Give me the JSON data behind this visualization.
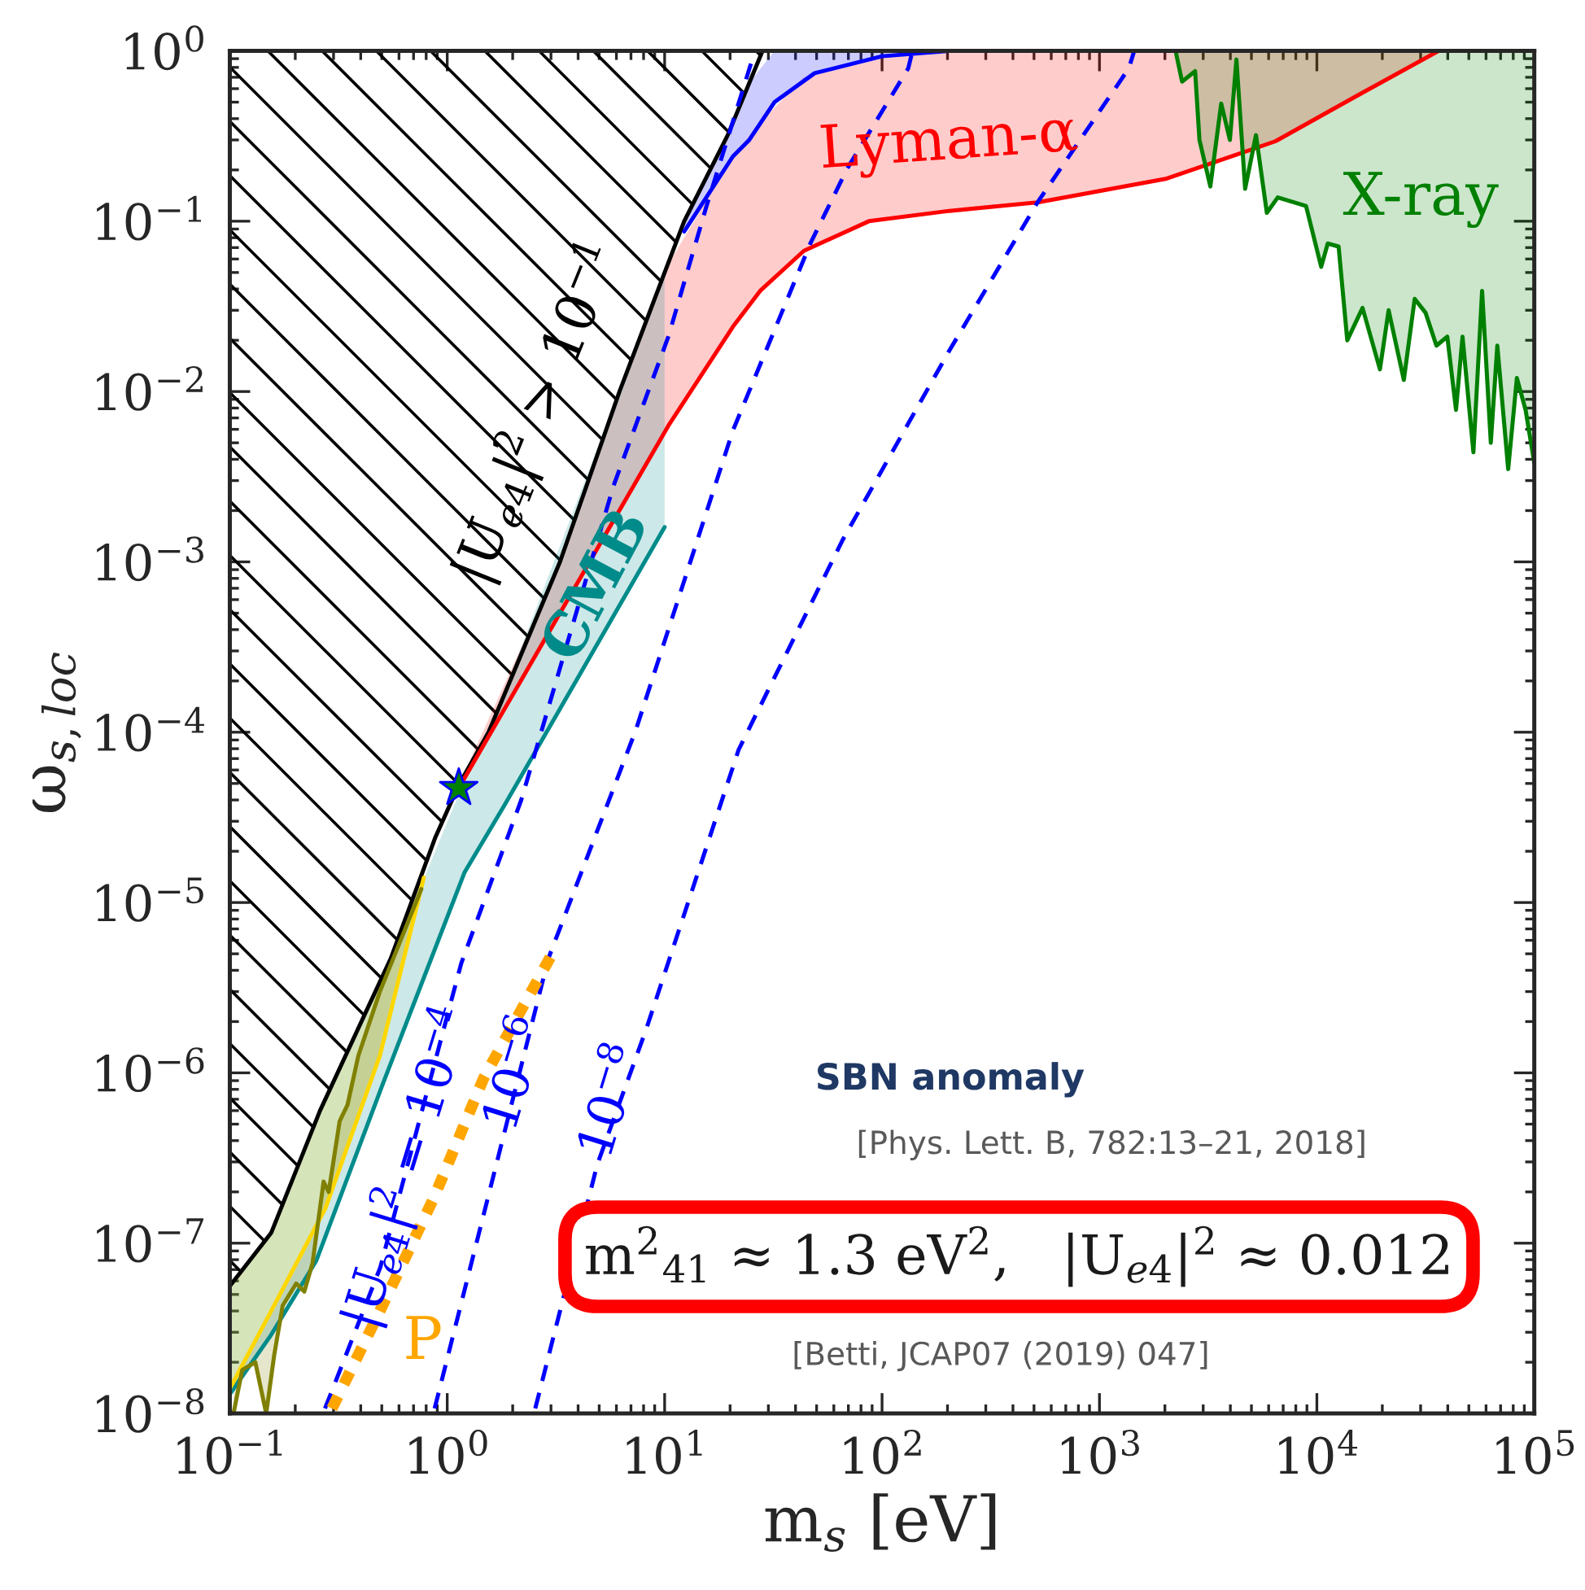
{
  "chart_data": {
    "type": "line",
    "log": "xy",
    "xlabel": "m$_{s}$ [eV]",
    "ylabel": "ω$_{s,loc}$",
    "xlim": [
      0.1,
      100000
    ],
    "ylim": [
      1e-08,
      1
    ],
    "xticks": [
      {
        "value": 0.1,
        "label": "10$^{−1}$"
      },
      {
        "value": 1,
        "label": "10$^{0}$"
      },
      {
        "value": 10,
        "label": "10$^{1}$"
      },
      {
        "value": 100,
        "label": "10$^{2}$"
      },
      {
        "value": 1000,
        "label": "10$^{3}$"
      },
      {
        "value": 10000,
        "label": "10$^{4}$"
      },
      {
        "value": 100000,
        "label": "10$^{5}$"
      }
    ],
    "yticks": [
      {
        "value": 1e-08,
        "label": "10$^{−8}$"
      },
      {
        "value": 1e-07,
        "label": "10$^{−7}$"
      },
      {
        "value": 1e-06,
        "label": "10$^{−6}$"
      },
      {
        "value": 1e-05,
        "label": "10$^{−5}$"
      },
      {
        "value": 0.0001,
        "label": "10$^{−4}$"
      },
      {
        "value": 0.001,
        "label": "10$^{−3}$"
      },
      {
        "value": 0.01,
        "label": "10$^{−2}$"
      },
      {
        "value": 0.1,
        "label": "10$^{−1}$"
      },
      {
        "value": 1,
        "label": "10$^{0}$"
      }
    ],
    "series": [
      {
        "color": "#000000",
        "x": [
          0.1,
          0.155,
          0.26,
          0.55,
          0.88,
          1.13,
          1.55,
          3.3,
          6.2,
          10,
          12.3,
          19.5,
          28.2
        ],
        "values": [
          5.6e-08,
          1.15e-07,
          6e-07,
          4.7e-06,
          2.4e-05,
          4.9e-05,
          0.0001,
          0.001,
          0.01,
          0.05,
          0.1,
          0.32,
          1
        ],
        "lower": [
          5.6e-08,
          1.15e-07,
          6e-07,
          4.7e-06,
          2.4e-05,
          4.9e-05,
          0.0001,
          0.001,
          0.01,
          0.05,
          0.1,
          0.32,
          1
        ],
        "upper": [
          1,
          1,
          1,
          1,
          1,
          1,
          1,
          1,
          1,
          1,
          1,
          1,
          1
        ]
      },
      {
        "color": "#0000ff",
        "x": [
          12.3,
          20.6,
          24.5,
          32,
          49,
          100,
          204
        ],
        "values": [
          0.087,
          0.24,
          0.3,
          0.5,
          0.74,
          0.93,
          1.0
        ],
        "lower": [
          0.087,
          0.24,
          0.3,
          0.5,
          0.74,
          0.93,
          1.0
        ],
        "upper": [
          0.1,
          0.38,
          0.65,
          1,
          1,
          1,
          1
        ]
      },
      {
        "color": "#ff0000",
        "x": [
          1.13,
          3.3,
          10.4,
          20.6,
          27.5,
          43.7,
          87,
          204,
          519,
          2040,
          6460,
          15100,
          36300
        ],
        "values": [
          4.7e-05,
          0.0005,
          0.0063,
          0.024,
          0.039,
          0.067,
          0.1,
          0.115,
          0.129,
          0.178,
          0.295,
          0.54,
          1.0
        ],
        "lower": [
          4.7e-05,
          0.0005,
          0.0063,
          0.024,
          0.039,
          0.067,
          0.1,
          0.115,
          0.129,
          0.178,
          0.295,
          0.54,
          1.0
        ],
        "upper": [
          4.9e-05,
          0.001,
          0.056,
          0.24,
          0.38,
          0.7,
          0.91,
          1,
          1,
          1,
          1,
          1,
          1
        ]
      },
      {
        "color": "#008b8b",
        "x": [
          0.1,
          0.155,
          0.25,
          0.5,
          1.2,
          1.85,
          10
        ],
        "values": [
          1.3e-08,
          2.9e-08,
          7.9e-08,
          8.3e-07,
          1.5e-05,
          3.8e-05,
          0.0016
        ],
        "lower": [
          1.3e-08,
          2.9e-08,
          7.9e-08,
          8.3e-07,
          1.5e-05,
          3.8e-05,
          0.0016
        ],
        "upper": [
          5.6e-08,
          1.15e-07,
          5.4e-07,
          3.5e-06,
          5.2e-05,
          0.00018,
          0.05
        ]
      },
      {
        "color": "#ffd700",
        "x": [
          0.1,
          0.155,
          0.275,
          0.49,
          0.78
        ],
        "values": [
          1.4e-08,
          4e-08,
          1.6e-07,
          1.26e-06,
          1.4e-05
        ],
        "lower": [
          1.4e-08,
          4e-08,
          1.6e-07,
          1.26e-06,
          1.4e-05
        ],
        "upper": [
          5.6e-08,
          1.15e-07,
          6.9e-07,
          3.4e-06,
          1.6e-05
        ]
      },
      {
        "color": "#808000",
        "x": [
          0.104,
          0.114,
          0.131,
          0.147,
          0.16,
          0.175,
          0.202,
          0.22,
          0.24,
          0.27,
          0.285,
          0.32,
          0.348,
          0.39,
          0.49,
          0.76
        ],
        "values": [
          1e-08,
          1.8e-08,
          2e-08,
          1e-08,
          2.2e-08,
          4.3e-08,
          5.8e-08,
          5.2e-08,
          7.6e-08,
          2.3e-07,
          2e-07,
          5.2e-07,
          6.5e-07,
          1.26e-06,
          3e-06,
          1.2e-05
        ],
        "lower": [
          1e-08,
          1.8e-08,
          2e-08,
          1e-08,
          2.2e-08,
          4.3e-08,
          5.8e-08,
          5.2e-08,
          7.6e-08,
          2.3e-07,
          2e-07,
          5.2e-07,
          6.5e-07,
          1.26e-06,
          3e-06,
          1.2e-05
        ],
        "upper": [
          1.55e-08,
          1.9e-08,
          2.7e-08,
          3.5e-08,
          4.4e-08,
          5.4e-08,
          7.6e-08,
          9.3e-08,
          1.15e-07,
          1.55e-07,
          1.8e-07,
          2.75e-07,
          3.8e-07,
          5.6e-07,
          1.3e-06,
          1.23e-05
        ]
      },
      {
        "color": "#008000",
        "x": [
          2239,
          2399,
          2754,
          2884,
          3236,
          3631,
          3981,
          4266,
          4677,
          5248,
          5888,
          6607,
          8913,
          10470,
          11220,
          12590,
          13800,
          16220,
          19500,
          21380,
          25120,
          28180,
          31620,
          35480,
          39810,
          43650,
          46770,
          52480,
          57540,
          63100,
          67610,
          75860,
          83180,
          91200,
          100000
        ],
        "values": [
          1,
          0.66,
          0.76,
          0.3,
          0.16,
          0.49,
          0.3,
          0.89,
          0.155,
          0.32,
          0.112,
          0.138,
          0.123,
          0.054,
          0.074,
          0.071,
          0.02,
          0.031,
          0.0135,
          0.03,
          0.0117,
          0.035,
          0.029,
          0.0186,
          0.021,
          0.0078,
          0.021,
          0.0044,
          0.039,
          0.005,
          0.0186,
          0.0035,
          0.012,
          0.0078,
          0.0038
        ],
        "lower": [
          1,
          0.66,
          0.76,
          0.3,
          0.16,
          0.49,
          0.3,
          0.89,
          0.155,
          0.32,
          0.112,
          0.138,
          0.123,
          0.054,
          0.074,
          0.071,
          0.02,
          0.031,
          0.0135,
          0.03,
          0.0117,
          0.035,
          0.029,
          0.0186,
          0.021,
          0.0078,
          0.021,
          0.0044,
          0.039,
          0.005,
          0.0186,
          0.0035,
          0.012,
          0.0078,
          0.0038
        ],
        "upper": [
          1,
          1,
          1,
          1,
          1,
          1,
          1,
          1,
          1,
          1,
          1,
          1,
          1,
          1,
          1,
          1,
          1,
          1,
          1,
          1,
          1,
          1,
          1,
          1,
          1,
          1,
          1,
          1,
          1,
          1,
          1,
          1,
          1,
          1,
          1
        ]
      },
      {
        "color": "#0000ff",
        "line_style": "dashed",
        "x": [
          0.274,
          0.492,
          1.16,
          2.19,
          5.82,
          10.4,
          15.5,
          25.7
        ],
        "values": [
          1.07e-08,
          7.2e-08,
          4.4e-06,
          4e-05,
          0.0028,
          0.021,
          0.12,
          0.95
        ]
      },
      {
        "color": "#0000ff",
        "line_style": "dashed",
        "x": [
          0.875,
          2.92,
          7.35,
          20.6,
          46.8,
          69.2,
          132,
          138
        ],
        "values": [
          1.07e-08,
          4.7e-06,
          0.000102,
          0.0059,
          0.074,
          0.204,
          0.79,
          1.0
        ]
      },
      {
        "color": "#0000ff",
        "line_style": "dashed",
        "x": [
          2.54,
          4.9,
          8.22,
          21.9,
          66,
          204,
          519,
          1365,
          1445
        ],
        "values": [
          1.07e-08,
          2.9e-07,
          1.8e-06,
          7.9e-05,
          0.00135,
          0.0174,
          0.129,
          0.79,
          1.0
        ]
      },
      {
        "color": "#ffa500",
        "line_style": "dotted",
        "x": [
          0.295,
          0.49,
          0.87,
          1.47,
          3.09
        ],
        "values": [
          1.07e-08,
          4e-08,
          1.86e-07,
          9.3e-07,
          5.2e-06
        ]
      },
      {
        "type": "scatter",
        "color": "#008000",
        "marker": "star",
        "x": [
          1.13
        ],
        "values": [
          4.7e-05
        ]
      }
    ],
    "annotations": [
      "|U$_{e4}$|$^{2}$ > 10$^{−1}$",
      "CMB",
      "Lyman-α",
      "X-ray",
      "|U$_{e4}$|$^{2}$ = 10$^{−4}$",
      "10$^{−6}$",
      "10$^{−8}$",
      "P",
      "SBN anomaly",
      "[Phys. Lett. B, 782:13–21, 2018]",
      "m$^{2}$$_{41}$ ≈ 1.3 eV$^{2}$,   |U$_{e4}$|$^{2}$ ≈ 0.012",
      "[Betti, JCAP07 (2019) 047]"
    ]
  }
}
